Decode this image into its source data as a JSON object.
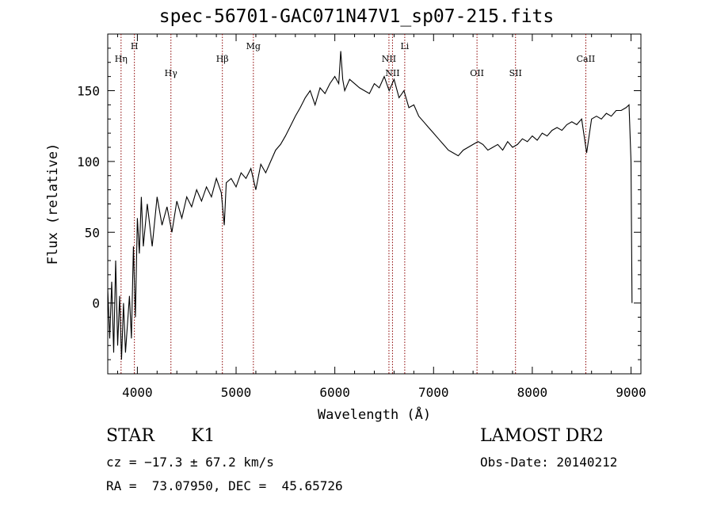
{
  "header": {
    "title": "spec-56701-GAC071N47V1_sp07-215.fits"
  },
  "info": {
    "class": "STAR",
    "subclass": "K1",
    "survey": "LAMOST DR2",
    "cz": "cz = −17.3 ± 67.2 km/s",
    "obs_date": "Obs-Date: 20140212",
    "radec": "RA =  73.07950, DEC =  45.65726"
  },
  "colors": {
    "line": "#000000",
    "marker": "#8b0000",
    "axis": "#000000"
  },
  "chart_data": {
    "type": "line",
    "title": "spec-56701-GAC071N47V1_sp07-215.fits",
    "xlabel": "Wavelength (Å)",
    "ylabel": "Flux (relative)",
    "xlim": [
      3700,
      9100
    ],
    "ylim": [
      -50,
      190
    ],
    "xticks": [
      4000,
      5000,
      6000,
      7000,
      8000,
      9000
    ],
    "yticks": [
      0,
      50,
      100,
      150
    ],
    "grid": false,
    "legend": "none",
    "series": [
      {
        "points": [
          [
            3700,
            10
          ],
          [
            3720,
            -25
          ],
          [
            3740,
            15
          ],
          [
            3760,
            -35
          ],
          [
            3780,
            30
          ],
          [
            3800,
            -30
          ],
          [
            3820,
            5
          ],
          [
            3840,
            -40
          ],
          [
            3860,
            0
          ],
          [
            3880,
            -35
          ],
          [
            3900,
            -15
          ],
          [
            3920,
            5
          ],
          [
            3940,
            -25
          ],
          [
            3960,
            40
          ],
          [
            3980,
            -10
          ],
          [
            4000,
            60
          ],
          [
            4020,
            35
          ],
          [
            4040,
            75
          ],
          [
            4060,
            40
          ],
          [
            4080,
            55
          ],
          [
            4100,
            70
          ],
          [
            4150,
            40
          ],
          [
            4200,
            75
          ],
          [
            4250,
            55
          ],
          [
            4300,
            68
          ],
          [
            4350,
            50
          ],
          [
            4400,
            72
          ],
          [
            4450,
            60
          ],
          [
            4500,
            75
          ],
          [
            4550,
            68
          ],
          [
            4600,
            80
          ],
          [
            4650,
            72
          ],
          [
            4700,
            82
          ],
          [
            4750,
            75
          ],
          [
            4800,
            88
          ],
          [
            4850,
            78
          ],
          [
            4880,
            55
          ],
          [
            4900,
            85
          ],
          [
            4950,
            88
          ],
          [
            5000,
            82
          ],
          [
            5050,
            92
          ],
          [
            5100,
            88
          ],
          [
            5150,
            95
          ],
          [
            5200,
            80
          ],
          [
            5250,
            98
          ],
          [
            5300,
            92
          ],
          [
            5350,
            100
          ],
          [
            5400,
            108
          ],
          [
            5450,
            112
          ],
          [
            5500,
            118
          ],
          [
            5550,
            125
          ],
          [
            5600,
            132
          ],
          [
            5650,
            138
          ],
          [
            5700,
            145
          ],
          [
            5750,
            150
          ],
          [
            5800,
            140
          ],
          [
            5850,
            152
          ],
          [
            5900,
            148
          ],
          [
            5950,
            155
          ],
          [
            6000,
            160
          ],
          [
            6040,
            155
          ],
          [
            6060,
            178
          ],
          [
            6080,
            158
          ],
          [
            6100,
            150
          ],
          [
            6150,
            158
          ],
          [
            6200,
            155
          ],
          [
            6250,
            152
          ],
          [
            6300,
            150
          ],
          [
            6350,
            148
          ],
          [
            6400,
            155
          ],
          [
            6450,
            152
          ],
          [
            6500,
            160
          ],
          [
            6550,
            150
          ],
          [
            6600,
            158
          ],
          [
            6650,
            145
          ],
          [
            6700,
            150
          ],
          [
            6750,
            138
          ],
          [
            6800,
            140
          ],
          [
            6850,
            132
          ],
          [
            6900,
            128
          ],
          [
            6950,
            124
          ],
          [
            7000,
            120
          ],
          [
            7050,
            116
          ],
          [
            7100,
            112
          ],
          [
            7150,
            108
          ],
          [
            7200,
            106
          ],
          [
            7250,
            104
          ],
          [
            7300,
            108
          ],
          [
            7350,
            110
          ],
          [
            7400,
            112
          ],
          [
            7450,
            114
          ],
          [
            7500,
            112
          ],
          [
            7550,
            108
          ],
          [
            7600,
            110
          ],
          [
            7650,
            112
          ],
          [
            7700,
            108
          ],
          [
            7750,
            114
          ],
          [
            7800,
            110
          ],
          [
            7850,
            112
          ],
          [
            7900,
            116
          ],
          [
            7950,
            114
          ],
          [
            8000,
            118
          ],
          [
            8050,
            115
          ],
          [
            8100,
            120
          ],
          [
            8150,
            118
          ],
          [
            8200,
            122
          ],
          [
            8250,
            124
          ],
          [
            8300,
            122
          ],
          [
            8350,
            126
          ],
          [
            8400,
            128
          ],
          [
            8450,
            126
          ],
          [
            8500,
            130
          ],
          [
            8550,
            106
          ],
          [
            8600,
            130
          ],
          [
            8650,
            132
          ],
          [
            8700,
            130
          ],
          [
            8750,
            134
          ],
          [
            8800,
            132
          ],
          [
            8850,
            136
          ],
          [
            8900,
            136
          ],
          [
            8950,
            138
          ],
          [
            8980,
            140
          ],
          [
            9000,
            100
          ],
          [
            9010,
            0
          ]
        ]
      }
    ],
    "line_markers": [
      {
        "label": "Hη",
        "x": 3835,
        "label_row": 2
      },
      {
        "label": "H",
        "x": 3970,
        "label_row": 1
      },
      {
        "label": "Hγ",
        "x": 4340,
        "label_row": 3
      },
      {
        "label": "Hβ",
        "x": 4861,
        "label_row": 2
      },
      {
        "label": "Mg",
        "x": 5175,
        "label_row": 1
      },
      {
        "label": "NII",
        "x": 6548,
        "label_row": 2
      },
      {
        "label": "NII",
        "x": 6584,
        "label_row": 3
      },
      {
        "label": "Li",
        "x": 6708,
        "label_row": 1
      },
      {
        "label": "OII",
        "x": 7440,
        "label_row": 3
      },
      {
        "label": "SII",
        "x": 7830,
        "label_row": 3
      },
      {
        "label": "CaII",
        "x": 8542,
        "label_row": 2
      }
    ]
  }
}
